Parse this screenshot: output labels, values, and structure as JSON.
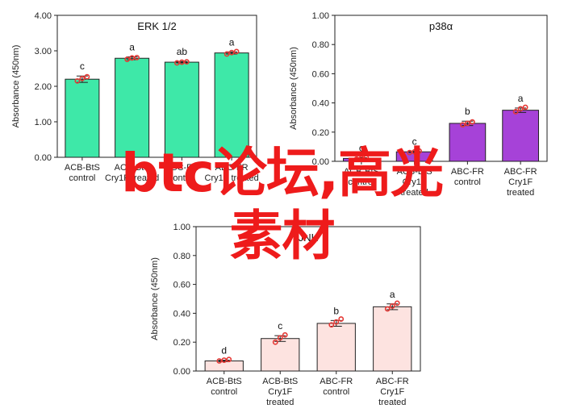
{
  "chart_data": [
    {
      "type": "bar",
      "title": "ERK 1/2",
      "ylabel": "Absorbance (450nm)",
      "ylim": [
        0,
        4
      ],
      "yticks": [
        "0.00",
        "1.00",
        "2.00",
        "3.00",
        "4.00"
      ],
      "categories": [
        [
          "ACB-BtS",
          "control"
        ],
        [
          "ACB-BtS",
          "Cry1F treated"
        ],
        [
          "ABC-FR",
          "control"
        ],
        [
          "ABC-FR",
          "Cry1F treated"
        ]
      ],
      "values": [
        2.2,
        2.79,
        2.68,
        2.94
      ],
      "errors": [
        0.09,
        0.04,
        0.02,
        0.03
      ],
      "points": [
        [
          2.15,
          2.22,
          2.27
        ],
        [
          2.76,
          2.8,
          2.81
        ],
        [
          2.66,
          2.68,
          2.69
        ],
        [
          2.91,
          2.95,
          2.98
        ]
      ],
      "significance": [
        "c",
        "a",
        "ab",
        "a"
      ],
      "bar_color": "#3ee8a8",
      "point_color": "#e53935"
    },
    {
      "type": "bar",
      "title": "p38α",
      "ylabel": "Absorbance (450nm)",
      "ylim": [
        0,
        1
      ],
      "yticks": [
        "0.00",
        "0.20",
        "0.40",
        "0.60",
        "0.80",
        "1.00"
      ],
      "categories": [
        [
          "ACB-BtS",
          "control"
        ],
        [
          "ACB-BtS",
          "Cry1F",
          "treated"
        ],
        [
          "ABC-FR",
          "control"
        ],
        [
          "ABC-FR",
          "Cry1F",
          "treated"
        ]
      ],
      "values": [
        0.02,
        0.065,
        0.26,
        0.35
      ],
      "errors": [
        0.005,
        0.005,
        0.015,
        0.015
      ],
      "points": [
        [
          0.015,
          0.02,
          0.025
        ],
        [
          0.06,
          0.065,
          0.07
        ],
        [
          0.25,
          0.26,
          0.27
        ],
        [
          0.34,
          0.36,
          0.37
        ]
      ],
      "significance": [
        "c",
        "c",
        "b",
        "a"
      ],
      "bar_color": "#a642d8",
      "point_color": "#e53935"
    },
    {
      "type": "bar",
      "title": "JNK",
      "ylabel": "Absorbance (450nm)",
      "ylim": [
        0,
        1
      ],
      "yticks": [
        "0.00",
        "0.20",
        "0.40",
        "0.60",
        "0.80",
        "1.00"
      ],
      "categories": [
        [
          "ACB-BtS",
          "control"
        ],
        [
          "ACB-BtS",
          "Cry1F",
          "treated"
        ],
        [
          "ABC-FR",
          "control"
        ],
        [
          "ABC-FR",
          "Cry1F",
          "treated"
        ]
      ],
      "values": [
        0.07,
        0.225,
        0.33,
        0.445
      ],
      "errors": [
        0.005,
        0.02,
        0.02,
        0.02
      ],
      "points": [
        [
          0.07,
          0.075,
          0.08
        ],
        [
          0.2,
          0.23,
          0.25
        ],
        [
          0.32,
          0.34,
          0.36
        ],
        [
          0.43,
          0.45,
          0.47
        ]
      ],
      "significance": [
        "d",
        "c",
        "b",
        "a"
      ],
      "bar_color": "#fde3e0",
      "point_color": "#e53935"
    }
  ],
  "watermark": [
    "btc论坛,高光",
    "素材"
  ]
}
